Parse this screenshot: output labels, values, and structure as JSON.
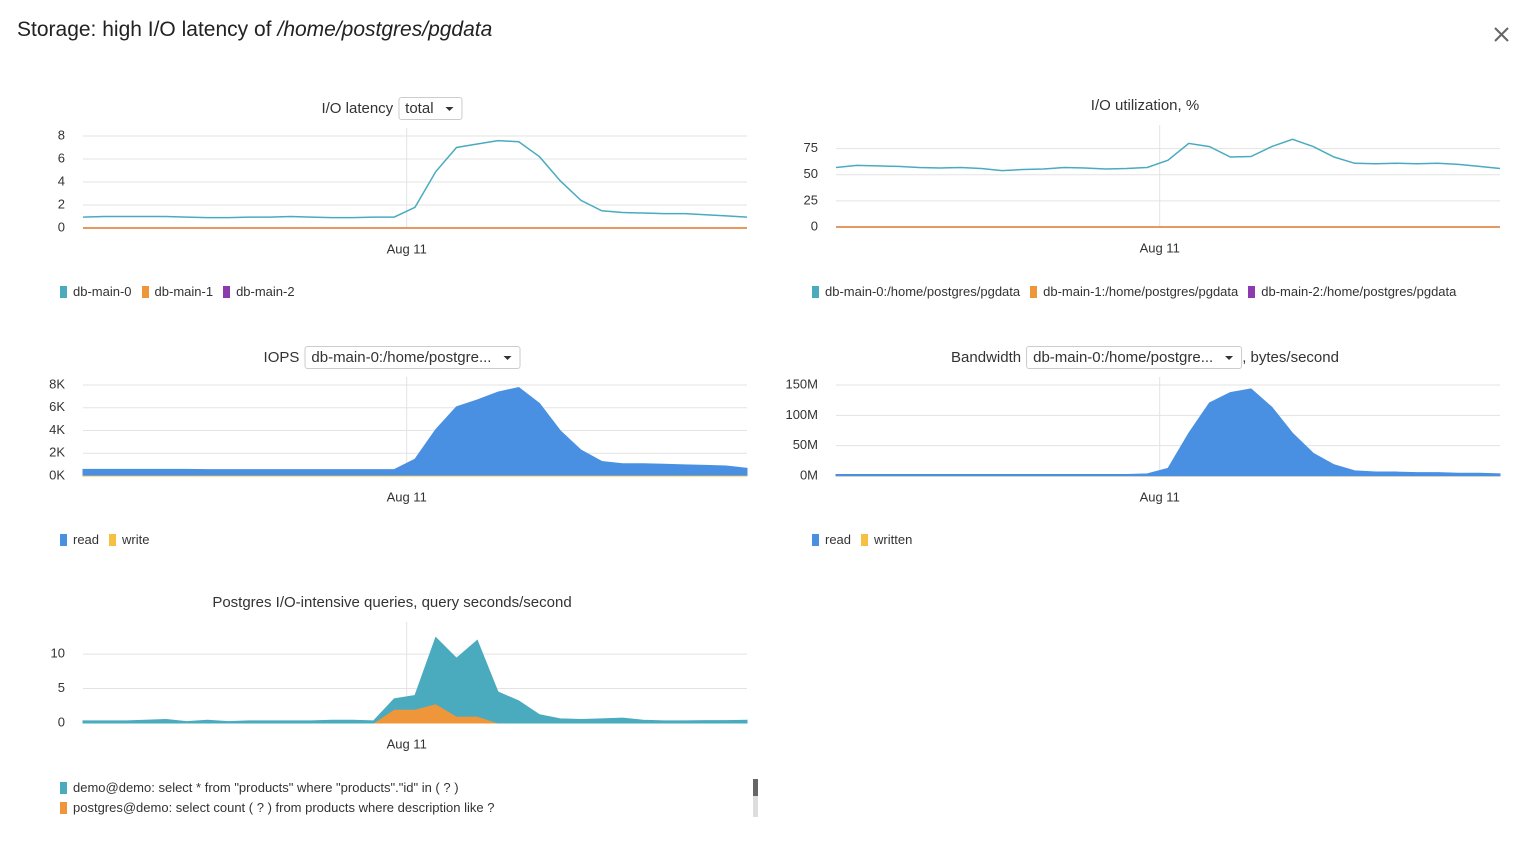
{
  "header": {
    "title": "Storage: high I/O latency of",
    "title_path": "/home/postgres/pgdata"
  },
  "chart_data": [
    {
      "type": "line",
      "title": "I/O latency",
      "dropdown": "total",
      "x": [
        0,
        1,
        2,
        3,
        4,
        5,
        6,
        7,
        8,
        9,
        10,
        11,
        12,
        13,
        14,
        15,
        16,
        17,
        18,
        19,
        20,
        21,
        22,
        23,
        24,
        25,
        26,
        27,
        28,
        29,
        30,
        31,
        32
      ],
      "xlim": [
        0,
        32
      ],
      "xticks": [
        {
          "value": 15.6,
          "label": "Aug 11"
        }
      ],
      "ylim": [
        0,
        8
      ],
      "yticks": [
        0,
        2,
        4,
        6,
        8
      ],
      "grid": true,
      "series": [
        {
          "name": "db-main-0",
          "color": "#4aabbf",
          "values": [
            0.95,
            1,
            1,
            1,
            1,
            0.95,
            0.9,
            0.9,
            0.95,
            0.95,
            1,
            0.95,
            0.9,
            0.9,
            0.95,
            0.95,
            1.8,
            4.9,
            7,
            7.3,
            7.6,
            7.5,
            6.2,
            4.1,
            2.4,
            1.5,
            1.35,
            1.3,
            1.25,
            1.25,
            1.15,
            1.05,
            0.95
          ]
        },
        {
          "name": "db-main-1",
          "color": "#f0963a",
          "values": [
            0,
            0,
            0,
            0,
            0,
            0,
            0,
            0,
            0,
            0,
            0,
            0,
            0,
            0,
            0,
            0,
            0,
            0,
            0,
            0,
            0,
            0,
            0,
            0,
            0,
            0,
            0,
            0,
            0,
            0,
            0,
            0,
            0
          ]
        },
        {
          "name": "db-main-2",
          "color": "#8e3aaf",
          "values": [
            0,
            0,
            0,
            0,
            0,
            0,
            0,
            0,
            0,
            0,
            0,
            0,
            0,
            0,
            0,
            0,
            0,
            0,
            0,
            0,
            0,
            0,
            0,
            0,
            0,
            0,
            0,
            0,
            0,
            0,
            0,
            0,
            0
          ]
        }
      ]
    },
    {
      "type": "line",
      "title": "I/O utilization, %",
      "x": [
        0,
        1,
        2,
        3,
        4,
        5,
        6,
        7,
        8,
        9,
        10,
        11,
        12,
        13,
        14,
        15,
        16,
        17,
        18,
        19,
        20,
        21,
        22,
        23,
        24,
        25,
        26,
        27,
        28,
        29,
        30,
        31,
        32
      ],
      "xlim": [
        0,
        32
      ],
      "xticks": [
        {
          "value": 15.6,
          "label": "Aug 11"
        }
      ],
      "ylim": [
        0,
        90
      ],
      "yticks": [
        0,
        25,
        50,
        75
      ],
      "grid": true,
      "series": [
        {
          "name": "db-main-0:/home/postgres/pgdata",
          "color": "#4aabbf",
          "values": [
            57,
            59,
            58.5,
            58,
            57,
            56.5,
            57,
            56,
            54,
            55,
            55.5,
            57,
            56.5,
            55.5,
            56,
            57,
            64,
            80,
            77,
            67,
            67.5,
            77,
            84,
            77,
            67,
            61,
            60.5,
            61,
            60.5,
            61,
            60,
            58,
            56
          ]
        },
        {
          "name": "db-main-1:/home/postgres/pgdata",
          "color": "#f0963a",
          "values": [
            0,
            0,
            0,
            0,
            0,
            0,
            0,
            0,
            0,
            0,
            0,
            0,
            0,
            0,
            0,
            0,
            0,
            0,
            0,
            0,
            0,
            0,
            0,
            0,
            0,
            0,
            0,
            0,
            0,
            0,
            0,
            0,
            0
          ]
        },
        {
          "name": "db-main-2:/home/postgres/pgdata",
          "color": "#8e3aaf",
          "values": [
            0,
            0,
            0,
            0,
            0,
            0,
            0,
            0,
            0,
            0,
            0,
            0,
            0,
            0,
            0,
            0,
            0,
            0,
            0,
            0,
            0,
            0,
            0,
            0,
            0,
            0,
            0,
            0,
            0,
            0,
            0,
            0,
            0
          ]
        }
      ]
    },
    {
      "type": "area",
      "title": "IOPS",
      "dropdown": "db-main-0:/home/postgre...",
      "x": [
        0,
        1,
        2,
        3,
        4,
        5,
        6,
        7,
        8,
        9,
        10,
        11,
        12,
        13,
        14,
        15,
        16,
        17,
        18,
        19,
        20,
        21,
        22,
        23,
        24,
        25,
        26,
        27,
        28,
        29,
        30,
        31,
        32
      ],
      "xlim": [
        0,
        32
      ],
      "xticks": [
        {
          "value": 15.6,
          "label": "Aug 11"
        }
      ],
      "ylim": [
        0,
        8000
      ],
      "yticks": [
        {
          "value": 0,
          "label": "0K"
        },
        {
          "value": 2000,
          "label": "2K"
        },
        {
          "value": 4000,
          "label": "4K"
        },
        {
          "value": 6000,
          "label": "6K"
        },
        {
          "value": 8000,
          "label": "8K"
        }
      ],
      "grid": true,
      "series": [
        {
          "name": "read",
          "color": "#4a90e2",
          "values": [
            500,
            500,
            500,
            500,
            500,
            500,
            480,
            480,
            480,
            480,
            480,
            480,
            480,
            480,
            480,
            480,
            1400,
            4000,
            6000,
            6600,
            7300,
            7700,
            6300,
            3900,
            2200,
            1200,
            1000,
            1000,
            950,
            900,
            850,
            800,
            600
          ]
        },
        {
          "name": "write",
          "color": "#f5c044",
          "values": [
            80,
            80,
            80,
            80,
            80,
            80,
            80,
            80,
            80,
            80,
            80,
            80,
            80,
            80,
            80,
            80,
            80,
            80,
            80,
            80,
            80,
            80,
            80,
            80,
            80,
            80,
            80,
            80,
            80,
            80,
            80,
            80,
            80
          ]
        }
      ]
    },
    {
      "type": "area",
      "title": "Bandwidth",
      "dropdown": "db-main-0:/home/postgre...",
      "title_suffix": ", bytes/second",
      "x": [
        0,
        1,
        2,
        3,
        4,
        5,
        6,
        7,
        8,
        9,
        10,
        11,
        12,
        13,
        14,
        15,
        16,
        17,
        18,
        19,
        20,
        21,
        22,
        23,
        24,
        25,
        26,
        27,
        28,
        29,
        30,
        31,
        32
      ],
      "xlim": [
        0,
        32
      ],
      "xticks": [
        {
          "value": 15.6,
          "label": "Aug 11"
        }
      ],
      "ylim": [
        0,
        150000000
      ],
      "yticks": [
        {
          "value": 0,
          "label": "0M"
        },
        {
          "value": 50000000,
          "label": "50M"
        },
        {
          "value": 100000000,
          "label": "100M"
        },
        {
          "value": 150000000,
          "label": "150M"
        }
      ],
      "grid": true,
      "series": [
        {
          "name": "read",
          "color": "#4a90e2",
          "values": [
            2000000,
            2000000,
            2000000,
            2000000,
            2000000,
            2000000,
            2000000,
            2000000,
            2000000,
            2000000,
            2000000,
            2000000,
            2000000,
            2000000,
            2000000,
            3000000,
            12000000,
            70000000,
            120000000,
            137000000,
            143000000,
            113000000,
            70000000,
            37000000,
            18000000,
            8000000,
            6000000,
            6000000,
            5000000,
            5000000,
            4000000,
            4000000,
            3000000
          ]
        },
        {
          "name": "written",
          "color": "#f5c044",
          "values": [
            500000,
            500000,
            500000,
            500000,
            500000,
            500000,
            500000,
            500000,
            500000,
            500000,
            500000,
            500000,
            500000,
            500000,
            500000,
            500000,
            500000,
            500000,
            500000,
            500000,
            500000,
            500000,
            500000,
            500000,
            500000,
            500000,
            500000,
            500000,
            500000,
            500000,
            500000,
            500000,
            500000
          ]
        }
      ]
    },
    {
      "type": "area",
      "title": "Postgres I/O-intensive queries, query seconds/second",
      "x": [
        0,
        1,
        2,
        3,
        4,
        5,
        6,
        7,
        8,
        9,
        10,
        11,
        12,
        13,
        14,
        15,
        16,
        17,
        18,
        19,
        20,
        21,
        22,
        23,
        24,
        25,
        26,
        27,
        28,
        29,
        30,
        31,
        32
      ],
      "xlim": [
        0,
        32
      ],
      "xticks": [
        {
          "value": 15.6,
          "label": "Aug 11"
        }
      ],
      "ylim": [
        0,
        13.5
      ],
      "yticks": [
        0,
        5,
        10
      ],
      "grid": true,
      "series": [
        {
          "name": "demo@demo: select * from \"products\" where \"products\".\"id\" in ( ? )",
          "color": "#4aabbf",
          "values": [
            0.3,
            0.3,
            0.3,
            0.4,
            0.5,
            0.2,
            0.4,
            0.2,
            0.3,
            0.3,
            0.3,
            0.3,
            0.4,
            0.4,
            0.3,
            1.5,
            2,
            9.6,
            8.4,
            11,
            4.5,
            3.2,
            1.2,
            0.6,
            0.5,
            0.6,
            0.7,
            0.4,
            0.3,
            0.3,
            0.35,
            0.35,
            0.4
          ]
        },
        {
          "name": "postgres@demo: select count ( ? ) from products where description like ?",
          "color": "#f0963a",
          "values": [
            0,
            0,
            0,
            0,
            0,
            0,
            0,
            0,
            0,
            0,
            0,
            0,
            0,
            0,
            0,
            2,
            2,
            2.8,
            1,
            1,
            0,
            0,
            0,
            0,
            0,
            0,
            0,
            0,
            0,
            0,
            0,
            0,
            0
          ]
        }
      ]
    }
  ]
}
